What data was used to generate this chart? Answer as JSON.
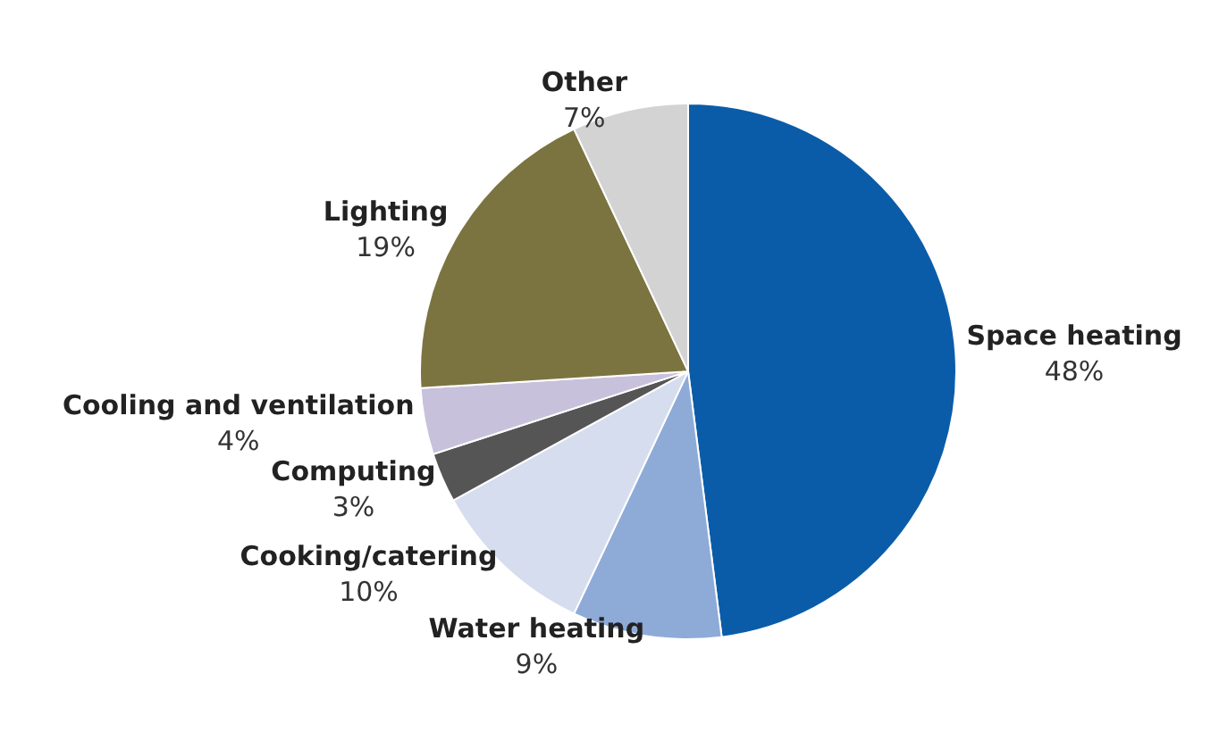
{
  "chart_data": {
    "type": "pie",
    "categories": [
      "Space heating",
      "Water heating",
      "Cooking/catering",
      "Computing",
      "Cooling and ventilation",
      "Lighting",
      "Other"
    ],
    "values": [
      48,
      9,
      10,
      3,
      4,
      19,
      7
    ],
    "value_labels": [
      "48%",
      "9%",
      "10%",
      "3%",
      "4%",
      "19%",
      "7%"
    ],
    "colors": [
      "#0b5ca8",
      "#8eabd8",
      "#d5ddef",
      "#555555",
      "#c8c1dc",
      "#7b7440",
      "#d3d3d3"
    ],
    "legend": false
  }
}
